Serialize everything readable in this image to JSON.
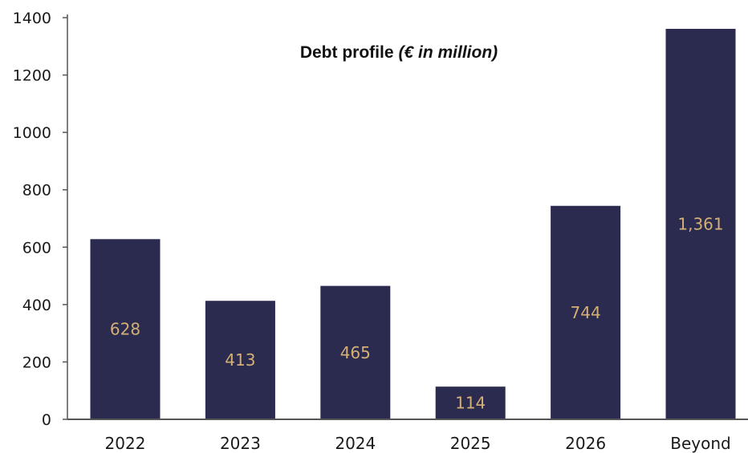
{
  "chart_data": {
    "type": "bar",
    "title": "Debt profile",
    "title_suffix": "(€ in million)",
    "xlabel": "",
    "ylabel": "",
    "categories": [
      "2022",
      "2023",
      "2024",
      "2025",
      "2026",
      "Beyond"
    ],
    "values": [
      628,
      413,
      465,
      114,
      744,
      1361
    ],
    "data_labels": [
      "628",
      "413",
      "465",
      "114",
      "744",
      "1,361"
    ],
    "ylim": [
      0,
      1400
    ],
    "yticks": [
      0,
      200,
      400,
      600,
      800,
      1000,
      1200,
      1400
    ],
    "ytick_labels": [
      "0",
      "200",
      "400",
      "600",
      "800",
      "1000",
      "1200",
      "1400"
    ],
    "grid": false,
    "legend": "none",
    "colors": {
      "bar": "#2b2a4f",
      "data_label": "#d4b074",
      "axis": "#555555"
    }
  }
}
